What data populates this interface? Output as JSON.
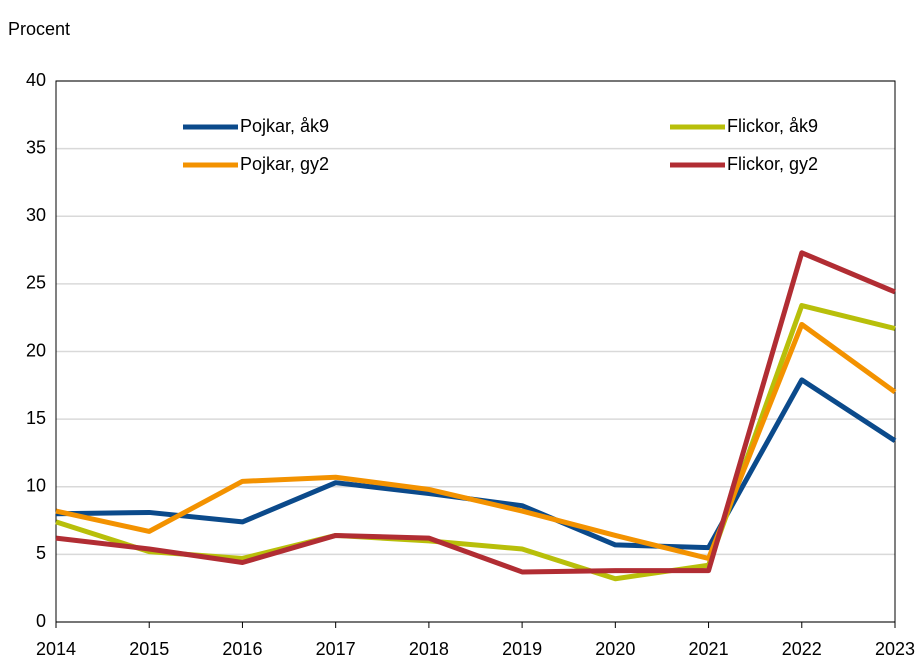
{
  "chart_data": {
    "type": "line",
    "ylabel": "Procent",
    "categories": [
      "2014",
      "2015",
      "2016",
      "2017",
      "2018",
      "2019",
      "2020",
      "2021",
      "2022",
      "2023"
    ],
    "series": [
      {
        "name": "Pojkar, åk9",
        "color": "#0b4a8b",
        "values": [
          8.0,
          8.1,
          7.4,
          10.3,
          9.5,
          8.6,
          5.7,
          5.5,
          17.9,
          13.4
        ]
      },
      {
        "name": "Flickor, åk9",
        "color": "#b8bf0a",
        "values": [
          7.4,
          5.2,
          4.7,
          6.4,
          6.0,
          5.4,
          3.2,
          4.2,
          23.4,
          21.7
        ]
      },
      {
        "name": "Pojkar, gy2",
        "color": "#f39200",
        "values": [
          8.2,
          6.7,
          10.4,
          10.7,
          9.8,
          8.2,
          6.4,
          4.7,
          22.0,
          17.0
        ]
      },
      {
        "name": "Flickor, gy2",
        "color": "#b12d33",
        "values": [
          6.2,
          5.4,
          4.4,
          6.4,
          6.2,
          3.7,
          3.8,
          3.8,
          27.3,
          24.4
        ]
      }
    ],
    "ylim": [
      0,
      40
    ],
    "yticks": [
      0,
      5,
      10,
      15,
      20,
      25,
      30,
      35,
      40
    ],
    "grid": true
  }
}
